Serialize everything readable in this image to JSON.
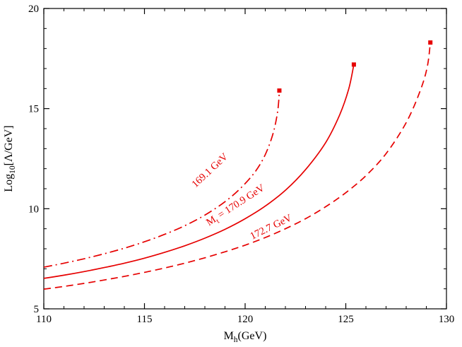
{
  "page": {
    "background": "#ffffff"
  },
  "chart_data": {
    "type": "line",
    "title": "",
    "xlabel": "M_h (GeV)",
    "ylabel": "Log_10 [Lambda/GeV]",
    "xlabel_parts": [
      {
        "t": "M"
      },
      {
        "t": "h",
        "sub": true
      },
      {
        "t": "(GeV)"
      }
    ],
    "ylabel_parts": [
      {
        "t": "Log"
      },
      {
        "t": "10",
        "sub": true
      },
      {
        "t": "[Λ/GeV]"
      }
    ],
    "xlim": [
      110,
      130
    ],
    "ylim": [
      5,
      20
    ],
    "x_major_ticks": [
      110,
      115,
      120,
      125,
      130
    ],
    "x_tick_labels": [
      "110",
      "115",
      "120",
      "125",
      "130"
    ],
    "y_major_ticks": [
      5,
      10,
      15,
      20
    ],
    "y_tick_labels": [
      "5",
      "10",
      "15",
      "20"
    ],
    "minor_tick_step_x": 1,
    "minor_tick_step_y": 1,
    "grid": false,
    "legend_position": "none",
    "axis_color": "#000000",
    "curve_color": "#e60000",
    "series": [
      {
        "name": "Mt = 169.1 GeV",
        "line_style": "dashdot",
        "end_marker": "square",
        "label": {
          "parts": [
            {
              "t": "169.1 GeV"
            }
          ],
          "x": 118.35,
          "y": 11.8,
          "angle": -43
        },
        "points": [
          [
            110,
            7.08
          ],
          [
            111,
            7.28
          ],
          [
            112,
            7.5
          ],
          [
            113,
            7.75
          ],
          [
            114,
            8.03
          ],
          [
            115,
            8.35
          ],
          [
            116,
            8.72
          ],
          [
            117,
            9.15
          ],
          [
            118,
            9.68
          ],
          [
            119,
            10.35
          ],
          [
            119.8,
            11.05
          ],
          [
            120.5,
            11.85
          ],
          [
            121,
            12.7
          ],
          [
            121.4,
            13.8
          ],
          [
            121.62,
            14.9
          ],
          [
            121.7,
            15.9
          ]
        ]
      },
      {
        "name": "Mt = 170.9 GeV",
        "line_style": "solid",
        "end_marker": "square",
        "label": {
          "parts": [
            {
              "t": "M"
            },
            {
              "t": "t",
              "sub": true
            },
            {
              "t": " = 170.9 GeV"
            }
          ],
          "x": 119.6,
          "y": 10.05,
          "angle": -33
        },
        "points": [
          [
            110,
            6.52
          ],
          [
            111,
            6.68
          ],
          [
            112,
            6.86
          ],
          [
            113,
            7.06
          ],
          [
            114,
            7.28
          ],
          [
            115,
            7.53
          ],
          [
            116,
            7.82
          ],
          [
            117,
            8.15
          ],
          [
            118,
            8.53
          ],
          [
            119,
            8.97
          ],
          [
            120,
            9.5
          ],
          [
            121,
            10.13
          ],
          [
            122,
            10.92
          ],
          [
            123,
            11.95
          ],
          [
            124,
            13.3
          ],
          [
            124.7,
            14.7
          ],
          [
            125.15,
            16.0
          ],
          [
            125.4,
            17.2
          ]
        ]
      },
      {
        "name": "Mt = 172.7 GeV",
        "line_style": "dashed",
        "end_marker": "square",
        "label": {
          "parts": [
            {
              "t": "172.7 GeV"
            }
          ],
          "x": 121.35,
          "y": 8.95,
          "angle": -26
        },
        "points": [
          [
            110,
            5.98
          ],
          [
            111,
            6.12
          ],
          [
            112,
            6.27
          ],
          [
            113,
            6.44
          ],
          [
            114,
            6.62
          ],
          [
            115,
            6.82
          ],
          [
            116,
            7.04
          ],
          [
            117,
            7.28
          ],
          [
            118,
            7.55
          ],
          [
            119,
            7.85
          ],
          [
            120,
            8.18
          ],
          [
            121,
            8.56
          ],
          [
            122,
            9.0
          ],
          [
            123,
            9.5
          ],
          [
            124,
            10.1
          ],
          [
            125,
            10.8
          ],
          [
            126,
            11.65
          ],
          [
            127,
            12.75
          ],
          [
            128,
            14.3
          ],
          [
            128.7,
            15.9
          ],
          [
            129.05,
            17.1
          ],
          [
            129.2,
            18.3
          ]
        ]
      }
    ]
  }
}
